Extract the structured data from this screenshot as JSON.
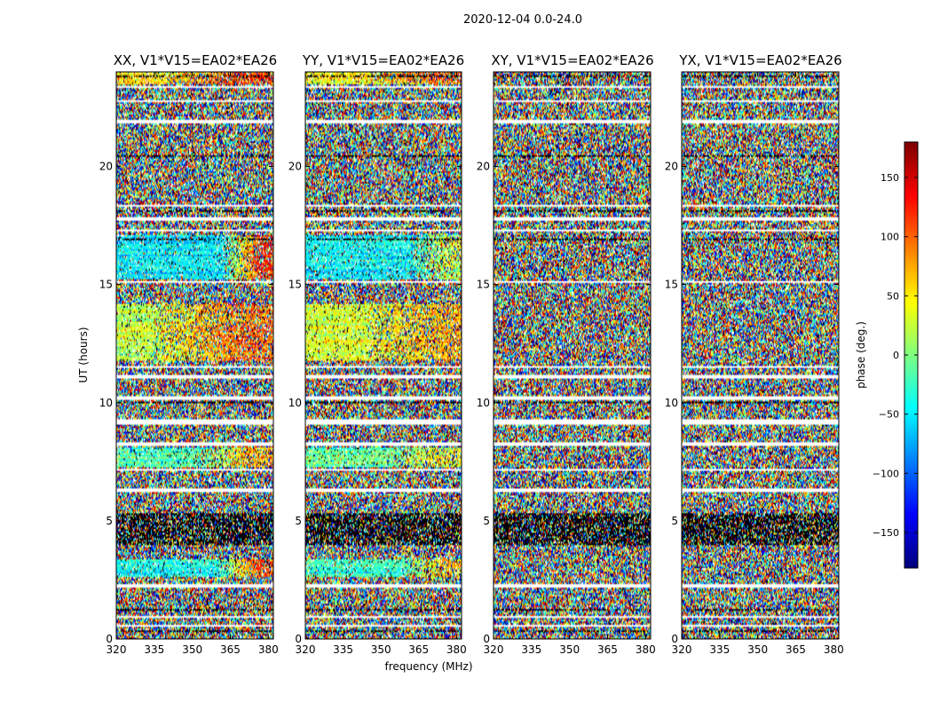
{
  "chart_data": {
    "type": "heatmap",
    "suptitle": "2020-12-04 0.0-24.0",
    "xlabel": "frequency (MHz)",
    "ylabel": "UT (hours)",
    "xlim": [
      320,
      382
    ],
    "ylim": [
      0,
      24
    ],
    "xticks": [
      320,
      335,
      350,
      365,
      380
    ],
    "yticks": [
      0,
      5,
      10,
      15,
      20
    ],
    "colorbar": {
      "label": "phase (deg.)",
      "range": [
        -180,
        180
      ],
      "ticks": [
        150,
        100,
        50,
        0,
        -50,
        -100,
        -150
      ],
      "tick_labels": [
        "150",
        "100",
        "50",
        "0",
        "−50",
        "−100",
        "−150"
      ],
      "colormap": "jet",
      "colors": [
        "#000080",
        "#0000ff",
        "#00c0ff",
        "#40ffc0",
        "#c0ff40",
        "#ffc000",
        "#ff2000",
        "#800000"
      ]
    },
    "panels": [
      {
        "title": "XX, V1*V15=EA02*EA26",
        "coherent_regions": [
          {
            "ut": [
              15.2,
              17.1
            ],
            "phase": -55,
            "drift_to": 120,
            "drift_start_mhz": 362
          },
          {
            "ut": [
              11.8,
              14.2
            ],
            "phase": 20,
            "drift_to": 95,
            "drift_start_mhz": 335
          },
          {
            "ut": [
              7.3,
              8.1
            ],
            "phase": -20,
            "drift_to": 70,
            "drift_start_mhz": 352
          },
          {
            "ut": [
              2.6,
              3.4
            ],
            "phase": -40,
            "drift_to": 110,
            "drift_start_mhz": 360
          },
          {
            "ut": [
              23.5,
              24.0
            ],
            "phase": 60,
            "drift_to": 120,
            "drift_start_mhz": 340
          }
        ]
      },
      {
        "title": "YY, V1*V15=EA02*EA26",
        "coherent_regions": [
          {
            "ut": [
              15.2,
              17.1
            ],
            "phase": -45,
            "drift_to": 30,
            "drift_start_mhz": 362
          },
          {
            "ut": [
              11.8,
              14.2
            ],
            "phase": 30,
            "drift_to": 70,
            "drift_start_mhz": 345
          },
          {
            "ut": [
              7.3,
              8.1
            ],
            "phase": -10,
            "drift_to": 40,
            "drift_start_mhz": 355
          },
          {
            "ut": [
              2.6,
              3.4
            ],
            "phase": -30,
            "drift_to": 60,
            "drift_start_mhz": 360
          },
          {
            "ut": [
              23.5,
              24.0
            ],
            "phase": 40,
            "drift_to": 90,
            "drift_start_mhz": 345
          }
        ]
      },
      {
        "title": "XY, V1*V15=EA02*EA26",
        "coherent_regions": []
      },
      {
        "title": "YX, V1*V15=EA02*EA26",
        "coherent_regions": []
      }
    ],
    "flagged_ut_ranges": [
      [
        0.55,
        0.6
      ],
      [
        0.9,
        1.0
      ],
      [
        1.55,
        1.6
      ],
      [
        2.2,
        2.35
      ],
      [
        3.5,
        3.55
      ],
      [
        6.25,
        6.4
      ],
      [
        7.1,
        7.2
      ],
      [
        8.15,
        8.3
      ],
      [
        9.1,
        9.3
      ],
      [
        10.15,
        10.3
      ],
      [
        11.05,
        11.15
      ],
      [
        11.45,
        11.55
      ],
      [
        15.05,
        15.15
      ],
      [
        17.25,
        17.35
      ],
      [
        17.7,
        17.85
      ],
      [
        18.3,
        18.35
      ],
      [
        21.8,
        22.0
      ],
      [
        22.7,
        22.8
      ],
      [
        23.3,
        23.4
      ]
    ],
    "dark_ut_bands": [
      [
        0.3,
        0.4
      ],
      [
        1.2,
        1.3
      ],
      [
        4.0,
        5.3
      ],
      [
        9.95,
        10.05
      ],
      [
        11.3,
        11.35
      ],
      [
        16.9,
        16.95
      ],
      [
        18.05,
        18.15
      ],
      [
        19.25,
        19.3
      ],
      [
        20.4,
        20.5
      ],
      [
        22.4,
        22.45
      ],
      [
        23.75,
        23.85
      ]
    ]
  }
}
